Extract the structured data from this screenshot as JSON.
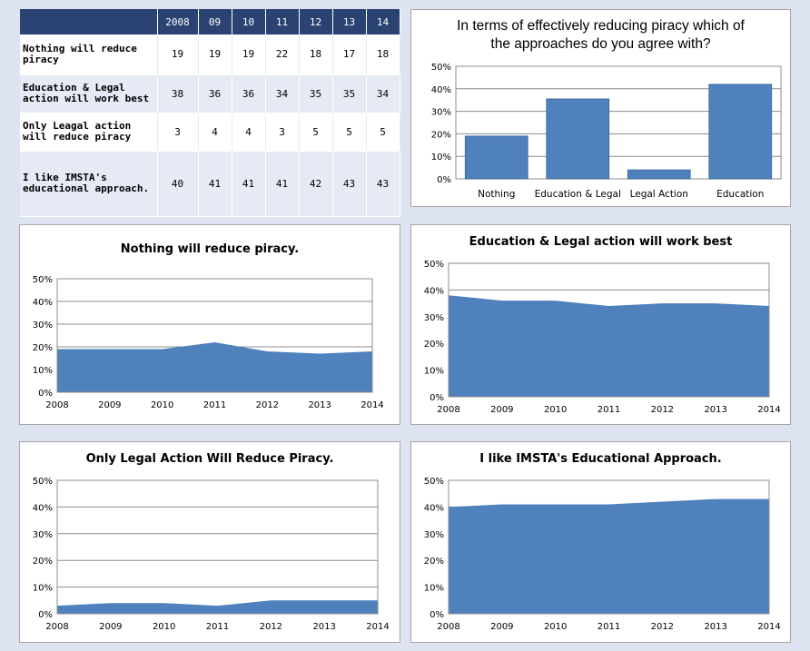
{
  "table": {
    "header": [
      "",
      "2008",
      "09",
      "10",
      "11",
      "12",
      "13",
      "14"
    ],
    "rows": [
      {
        "label_lines": [
          "Nothing will reduce",
          "piracy"
        ],
        "values": [
          "19",
          "19",
          "19",
          "22",
          "18",
          "17",
          "18"
        ]
      },
      {
        "label_lines": [
          "Education & Legal",
          "action will work best"
        ],
        "values": [
          "38",
          "36",
          "36",
          "34",
          "35",
          "35",
          "34"
        ]
      },
      {
        "label_lines": [
          "Only Leagal action",
          "will reduce piracy"
        ],
        "values": [
          "3",
          "4",
          "4",
          "3",
          "5",
          "5",
          "5"
        ]
      },
      {
        "label_lines": [
          "I like IMSTA's",
          "educational approach."
        ],
        "values": [
          "40",
          "41",
          "41",
          "41",
          "42",
          "43",
          "43"
        ]
      }
    ]
  },
  "chart_data": [
    {
      "type": "bar",
      "title_lines": [
        "In terms of effectively reducing piracy which of",
        "the approaches do you agree with?"
      ],
      "categories": [
        "Nothing",
        "Education & Legal",
        "Legal Action",
        "Education"
      ],
      "values": [
        19,
        35.5,
        4,
        42
      ],
      "ylim": [
        0,
        50
      ],
      "yticks": [
        "0%",
        "10%",
        "20%",
        "30%",
        "40%",
        "50%"
      ],
      "grid": true,
      "color": "#4f81bd"
    },
    {
      "type": "area",
      "title": "Nothing will reduce piracy.",
      "x": [
        "2008",
        "2009",
        "2010",
        "2011",
        "2012",
        "2013",
        "2014"
      ],
      "values": [
        19,
        19,
        19,
        22,
        18,
        17,
        18
      ],
      "ylim": [
        0,
        50
      ],
      "yticks": [
        "0%",
        "10%",
        "20%",
        "30%",
        "40%",
        "50%"
      ],
      "grid": true,
      "color": "#4f81bd"
    },
    {
      "type": "area",
      "title": "Education & Legal action will work best",
      "x": [
        "2008",
        "2009",
        "2010",
        "2011",
        "2012",
        "2013",
        "2014"
      ],
      "values": [
        38,
        36,
        36,
        34,
        35,
        35,
        34
      ],
      "ylim": [
        0,
        50
      ],
      "yticks": [
        "0%",
        "10%",
        "20%",
        "30%",
        "40%",
        "50%"
      ],
      "grid": true,
      "color": "#4f81bd"
    },
    {
      "type": "area",
      "title": "Only Legal Action Will Reduce Piracy.",
      "x": [
        "2008",
        "2009",
        "2010",
        "2011",
        "2012",
        "2013",
        "2014"
      ],
      "values": [
        3,
        4,
        4,
        3,
        5,
        5,
        5
      ],
      "ylim": [
        0,
        50
      ],
      "yticks": [
        "0%",
        "10%",
        "20%",
        "30%",
        "40%",
        "50%"
      ],
      "grid": true,
      "color": "#4f81bd"
    },
    {
      "type": "area",
      "title": "I like IMSTA's Educational Approach.",
      "x": [
        "2008",
        "2009",
        "2010",
        "2011",
        "2012",
        "2013",
        "2014"
      ],
      "values": [
        40,
        41,
        41,
        41,
        42,
        43,
        43
      ],
      "ylim": [
        0,
        50
      ],
      "yticks": [
        "0%",
        "10%",
        "20%",
        "30%",
        "40%",
        "50%"
      ],
      "grid": true,
      "color": "#4f81bd"
    }
  ]
}
